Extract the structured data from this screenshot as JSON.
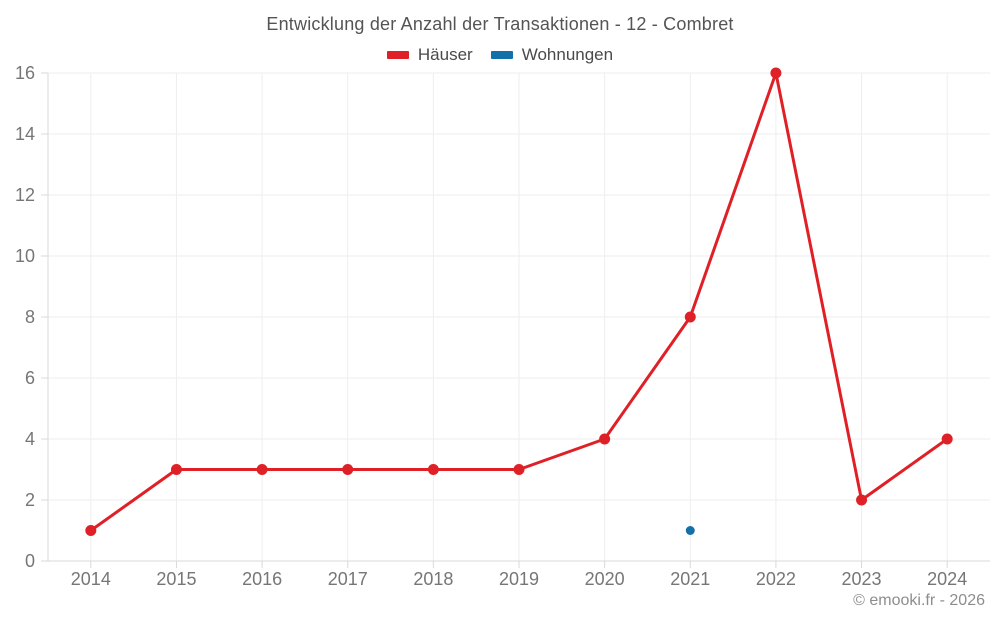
{
  "chart_data": {
    "type": "line",
    "title": "Entwicklung der Anzahl der Transaktionen - 12 - Combret",
    "categories": [
      "2014",
      "2015",
      "2016",
      "2017",
      "2018",
      "2019",
      "2020",
      "2021",
      "2022",
      "2023",
      "2024"
    ],
    "series": [
      {
        "name": "Häuser",
        "color": "#df2127",
        "point_radius": 5.5,
        "values": [
          1,
          3,
          3,
          3,
          3,
          3,
          4,
          8,
          16,
          2,
          4
        ]
      },
      {
        "name": "Wohnungen",
        "color": "#1470a8",
        "point_radius": 4.5,
        "values": [
          null,
          null,
          null,
          null,
          null,
          null,
          null,
          1,
          null,
          null,
          null
        ]
      }
    ],
    "xlabel": "",
    "ylabel": "",
    "ylim": [
      0,
      16
    ],
    "ytick_step": 2,
    "yticks": [
      0,
      2,
      4,
      6,
      8,
      10,
      12,
      14,
      16
    ],
    "grid": true,
    "legend_position": "top"
  },
  "footer": {
    "text": "© emooki.fr - 2026"
  }
}
